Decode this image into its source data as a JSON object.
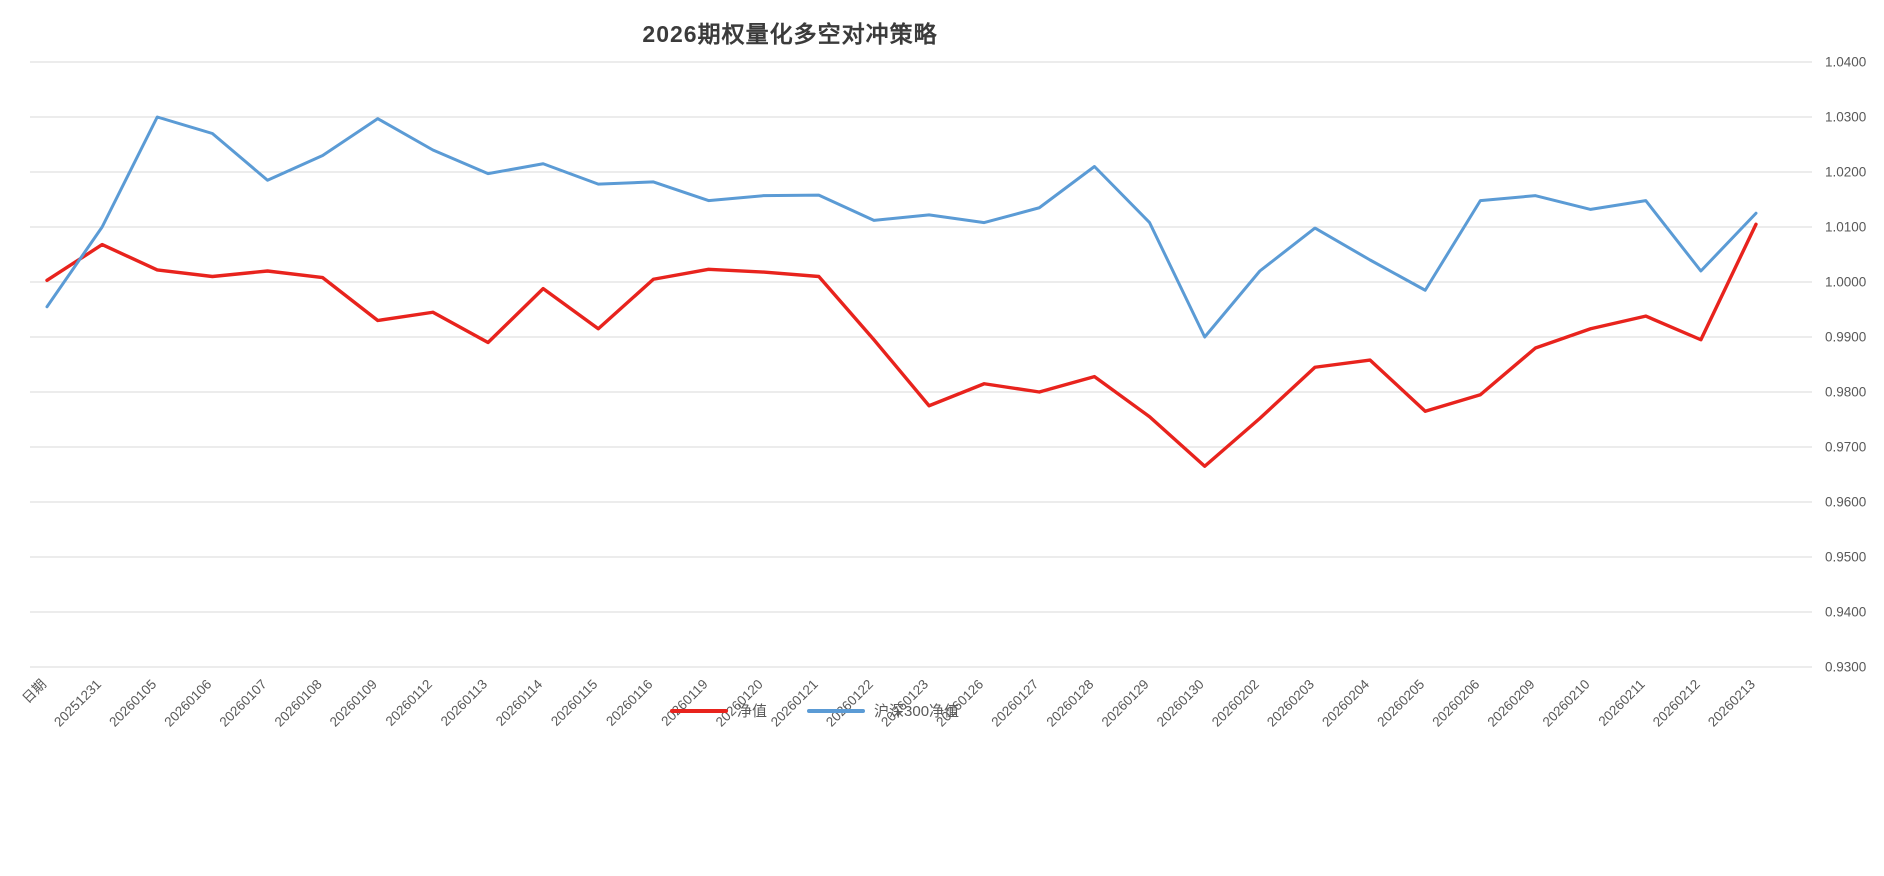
{
  "title": "2026期权量化多空对冲策略",
  "legend": [
    {
      "label": "净值",
      "color": "#e8231d"
    },
    {
      "label": "沪深300净值",
      "color": "#5b9bd5"
    }
  ],
  "chart_data": {
    "type": "line",
    "title": "2026期权量化多空对冲策略",
    "xlabel": "",
    "ylabel": "",
    "grid": "horizontal",
    "grid_color": "#d9d9d9",
    "axis_label_color": "#595959",
    "legend_position": "bottom-center",
    "ylim": [
      0.93,
      1.04
    ],
    "y_tick_step": 0.01,
    "y_ticks": [
      "1.0400",
      "1.0300",
      "1.0200",
      "1.0100",
      "1.0000",
      "0.9900",
      "0.9800",
      "0.9700",
      "0.9600",
      "0.9500",
      "0.9400",
      "0.9300"
    ],
    "categories": [
      "日期",
      "20251231",
      "20260105",
      "20260106",
      "20260107",
      "20260108",
      "20260109",
      "20260112",
      "20260113",
      "20260114",
      "20260115",
      "20260116",
      "20260119",
      "20260120",
      "20260121",
      "20260122",
      "20260123",
      "20260126",
      "20260127",
      "20260128",
      "20260129",
      "20260130",
      "20260202",
      "20260203",
      "20260204",
      "20260205",
      "20260206",
      "20260209",
      "20260210",
      "20260211",
      "20260212",
      "20260213"
    ],
    "series": [
      {
        "name": "净值",
        "color": "#e8231d",
        "values": [
          1.0003,
          1.0068,
          1.0022,
          1.001,
          1.002,
          1.0008,
          0.993,
          0.9945,
          0.989,
          0.9988,
          0.9915,
          1.0005,
          1.0023,
          1.0018,
          1.001,
          0.9895,
          0.9775,
          0.9815,
          0.98,
          0.9828,
          0.9755,
          0.9665,
          0.9752,
          0.9845,
          0.9858,
          0.9765,
          0.9795,
          0.988,
          0.9915,
          0.9938,
          0.9895,
          1.0105
        ]
      },
      {
        "name": "沪深300净值",
        "color": "#5b9bd5",
        "values": [
          0.9955,
          1.01,
          1.03,
          1.027,
          1.0185,
          1.023,
          1.0297,
          1.024,
          1.0197,
          1.0215,
          1.0178,
          1.0182,
          1.0148,
          1.0157,
          1.0158,
          1.0112,
          1.0122,
          1.0108,
          1.0135,
          1.021,
          1.0108,
          0.99,
          1.002,
          1.0098,
          1.004,
          0.9985,
          1.0148,
          1.0157,
          1.0132,
          1.0148,
          1.002,
          1.0125
        ]
      }
    ]
  }
}
